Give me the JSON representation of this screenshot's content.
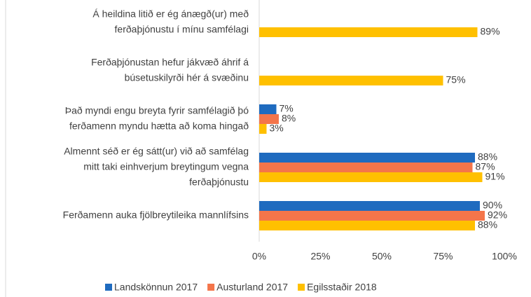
{
  "chart_data": {
    "type": "hbar",
    "categories": [
      [
        "Á heildina litið er ég ánægð(ur) með",
        "ferðaþjónustu í mínu samfélagi"
      ],
      [
        "Ferðaþjónustan hefur jákvæð áhrif á",
        "búsetuskilyrði hér á svæðinu"
      ],
      [
        "Það myndi engu breyta fyrir samfélagið þó",
        "ferðamenn myndu hætta að koma hingað"
      ],
      [
        "Almennt séð er ég sátt(ur) við að samfélag",
        "mitt taki einhverjum breytingum vegna",
        "ferðaþjónustu"
      ],
      [
        "Ferðamenn auka fjölbreytileika mannlífsins"
      ]
    ],
    "series": [
      {
        "name": "Landskönnun 2017",
        "color": "#1f6bbf",
        "values": [
          null,
          null,
          7,
          88,
          90
        ],
        "value_labels": [
          null,
          null,
          "7%",
          "88%",
          "90%"
        ]
      },
      {
        "name": "Austurland 2017",
        "color": "#f4754a",
        "values": [
          null,
          null,
          8,
          87,
          92
        ],
        "value_labels": [
          null,
          null,
          "8%",
          "87%",
          "92%"
        ]
      },
      {
        "name": "Egilsstaðir 2018",
        "color": "#ffc000",
        "values": [
          89,
          75,
          3,
          91,
          88
        ],
        "value_labels": [
          "89%",
          "75%",
          "3%",
          "91%",
          "88%"
        ]
      }
    ],
    "xlim": [
      0,
      100
    ],
    "xticks": [
      {
        "value": 0,
        "label": "0%"
      },
      {
        "value": 25,
        "label": "25%"
      },
      {
        "value": 50,
        "label": "50%"
      },
      {
        "value": 75,
        "label": "75%"
      },
      {
        "value": 100,
        "label": "100%"
      }
    ],
    "legend": "bottom"
  }
}
